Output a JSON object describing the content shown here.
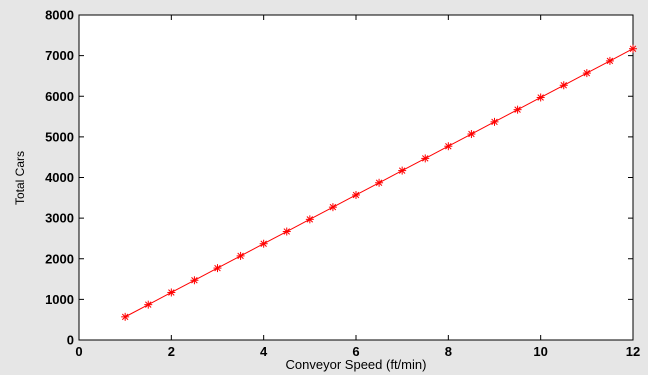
{
  "chart_data": {
    "type": "line",
    "xlabel": "Conveyor Speed (ft/min)",
    "ylabel": "Total Cars",
    "xlim": [
      0,
      12
    ],
    "ylim": [
      0,
      8000
    ],
    "x_ticks": [
      0,
      2,
      4,
      6,
      8,
      10,
      12
    ],
    "y_ticks": [
      0,
      1000,
      2000,
      3000,
      4000,
      5000,
      6000,
      7000,
      8000
    ],
    "grid": false,
    "legend": false,
    "series": [
      {
        "color": "#ff0000",
        "marker": "asterisk",
        "x": [
          1,
          1.5,
          2,
          2.5,
          3,
          3.5,
          4,
          4.5,
          5,
          5.5,
          6,
          6.5,
          7,
          7.5,
          8,
          8.5,
          9,
          9.5,
          10,
          10.5,
          11,
          11.5,
          12
        ],
        "y": [
          570,
          870,
          1170,
          1470,
          1770,
          2070,
          2370,
          2670,
          2970,
          3270,
          3570,
          3870,
          4170,
          4470,
          4770,
          5070,
          5370,
          5670,
          5970,
          6270,
          6570,
          6870,
          7170
        ]
      }
    ]
  }
}
